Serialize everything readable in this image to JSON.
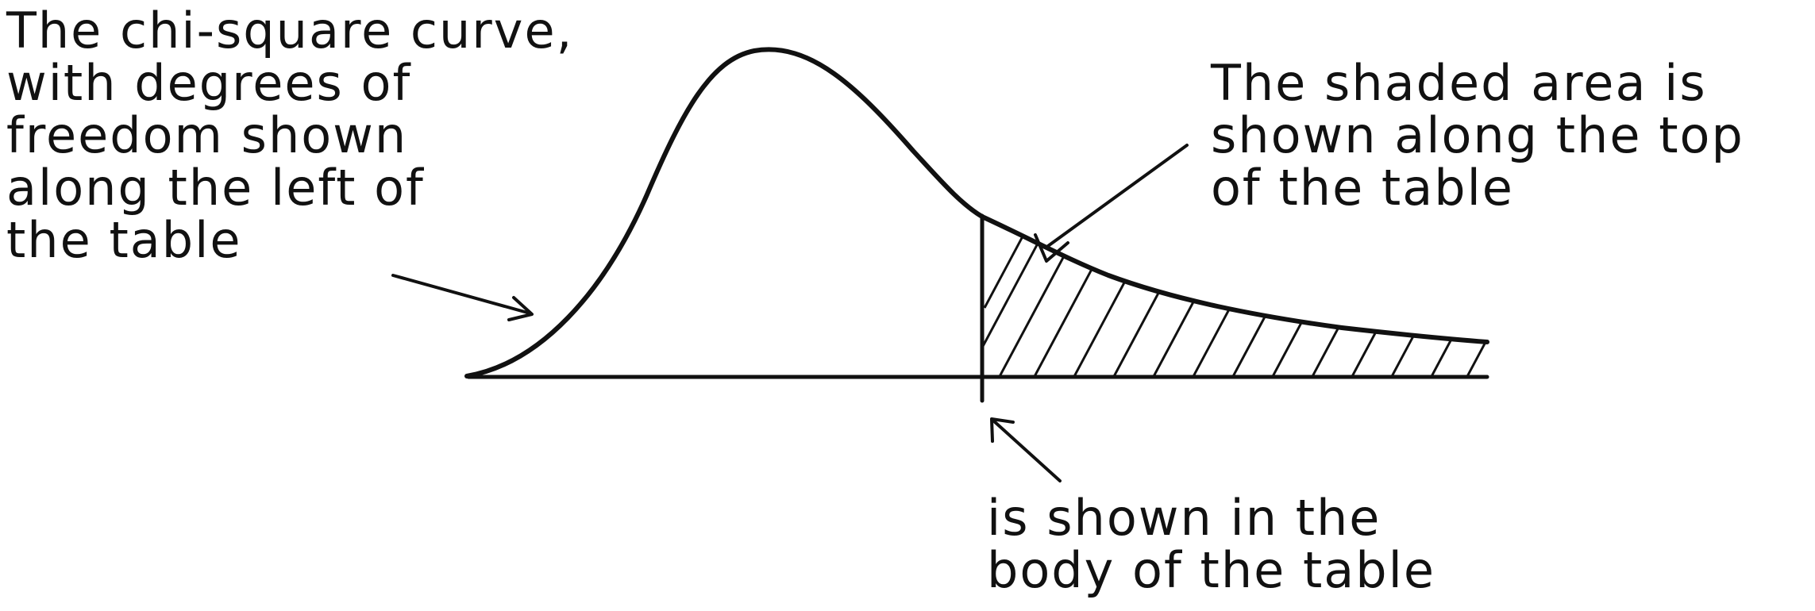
{
  "annotations": {
    "curve_note": "The chi-square curve,\nwith degrees of\nfreedom shown\nalong the left of\nthe table",
    "shaded_note": "The shaded area is\nshown along the top\nof the table",
    "body_note": "is shown in the\nbody of the table"
  },
  "colors": {
    "ink": "#111111",
    "background": "#ffffff"
  }
}
